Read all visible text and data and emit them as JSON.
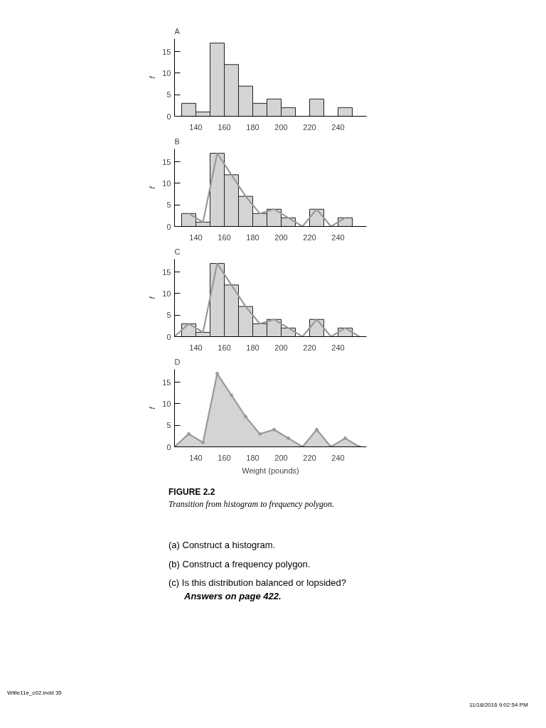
{
  "chart_data": [
    {
      "type": "histogram",
      "title": "A",
      "ylabel": "f",
      "bins": [
        130,
        140,
        150,
        160,
        170,
        180,
        190,
        200,
        210,
        220,
        230,
        240,
        250
      ],
      "values": [
        3,
        1,
        17,
        12,
        7,
        3,
        4,
        2,
        0,
        4,
        0,
        2
      ],
      "color": "#d4d4d4",
      "xlim": [
        125,
        260
      ],
      "ylim": [
        0,
        18
      ],
      "xticks": [
        140,
        160,
        180,
        200,
        220,
        240
      ],
      "yticks": [
        0,
        5,
        10,
        15
      ],
      "grid": false
    },
    {
      "type": "histogram",
      "title": "B",
      "ylabel": "f",
      "bins": [
        130,
        140,
        150,
        160,
        170,
        180,
        190,
        200,
        210,
        220,
        230,
        240,
        250
      ],
      "values": [
        3,
        1,
        17,
        12,
        7,
        3,
        4,
        2,
        0,
        4,
        0,
        2
      ],
      "color": "#d4d4d4",
      "xlim": [
        125,
        260
      ],
      "ylim": [
        0,
        18
      ],
      "xticks": [
        140,
        160,
        180,
        200,
        220,
        240
      ],
      "yticks": [
        0,
        5,
        10,
        15
      ],
      "grid": false,
      "series": [
        {
          "type": "line",
          "color": "#999999",
          "x": [
            135,
            145,
            155,
            165,
            175,
            185,
            195,
            205,
            215,
            225,
            235,
            245
          ],
          "values": [
            3,
            1,
            17,
            12,
            7,
            3,
            4,
            2,
            0,
            4,
            0,
            2
          ]
        }
      ]
    },
    {
      "type": "histogram",
      "title": "C",
      "ylabel": "f",
      "bins": [
        130,
        140,
        150,
        160,
        170,
        180,
        190,
        200,
        210,
        220,
        230,
        240,
        250
      ],
      "values": [
        3,
        1,
        17,
        12,
        7,
        3,
        4,
        2,
        0,
        4,
        0,
        2
      ],
      "color": "#d4d4d4",
      "xlim": [
        125,
        260
      ],
      "ylim": [
        0,
        18
      ],
      "xticks": [
        140,
        160,
        180,
        200,
        220,
        240
      ],
      "yticks": [
        0,
        5,
        10,
        15
      ],
      "grid": false,
      "series": [
        {
          "type": "line",
          "color": "#999999",
          "x": [
            125,
            135,
            145,
            155,
            165,
            175,
            185,
            195,
            205,
            215,
            225,
            235,
            245,
            255
          ],
          "values": [
            0,
            3,
            1,
            17,
            12,
            7,
            3,
            4,
            2,
            0,
            4,
            0,
            2,
            0
          ]
        }
      ]
    },
    {
      "type": "area",
      "title": "D",
      "ylabel": "f",
      "xlabel": "Weight (pounds)",
      "xlim": [
        125,
        260
      ],
      "ylim": [
        0,
        18
      ],
      "xticks": [
        140,
        160,
        180,
        200,
        220,
        240
      ],
      "yticks": [
        0,
        5,
        10,
        15
      ],
      "grid": false,
      "marker": "circle",
      "series": [
        {
          "color": "#999999",
          "x": [
            125,
            135,
            145,
            155,
            165,
            175,
            185,
            195,
            205,
            215,
            225,
            235,
            245,
            255
          ],
          "values": [
            0,
            3,
            1,
            17,
            12,
            7,
            3,
            4,
            2,
            0,
            4,
            0,
            2,
            0
          ]
        }
      ],
      "annotations": [
        "FIGURE 2.2",
        "Transition from histogram to frequency polygon.",
        "(a) Construct a histogram.",
        "(b) Construct a frequency polygon.",
        "(c) Is this distribution balanced or lopsided?",
        "Answers on page 422.",
        "Witte11e_c02.indd 35",
        "11/18/2016 9:02:54 PM"
      ]
    }
  ]
}
